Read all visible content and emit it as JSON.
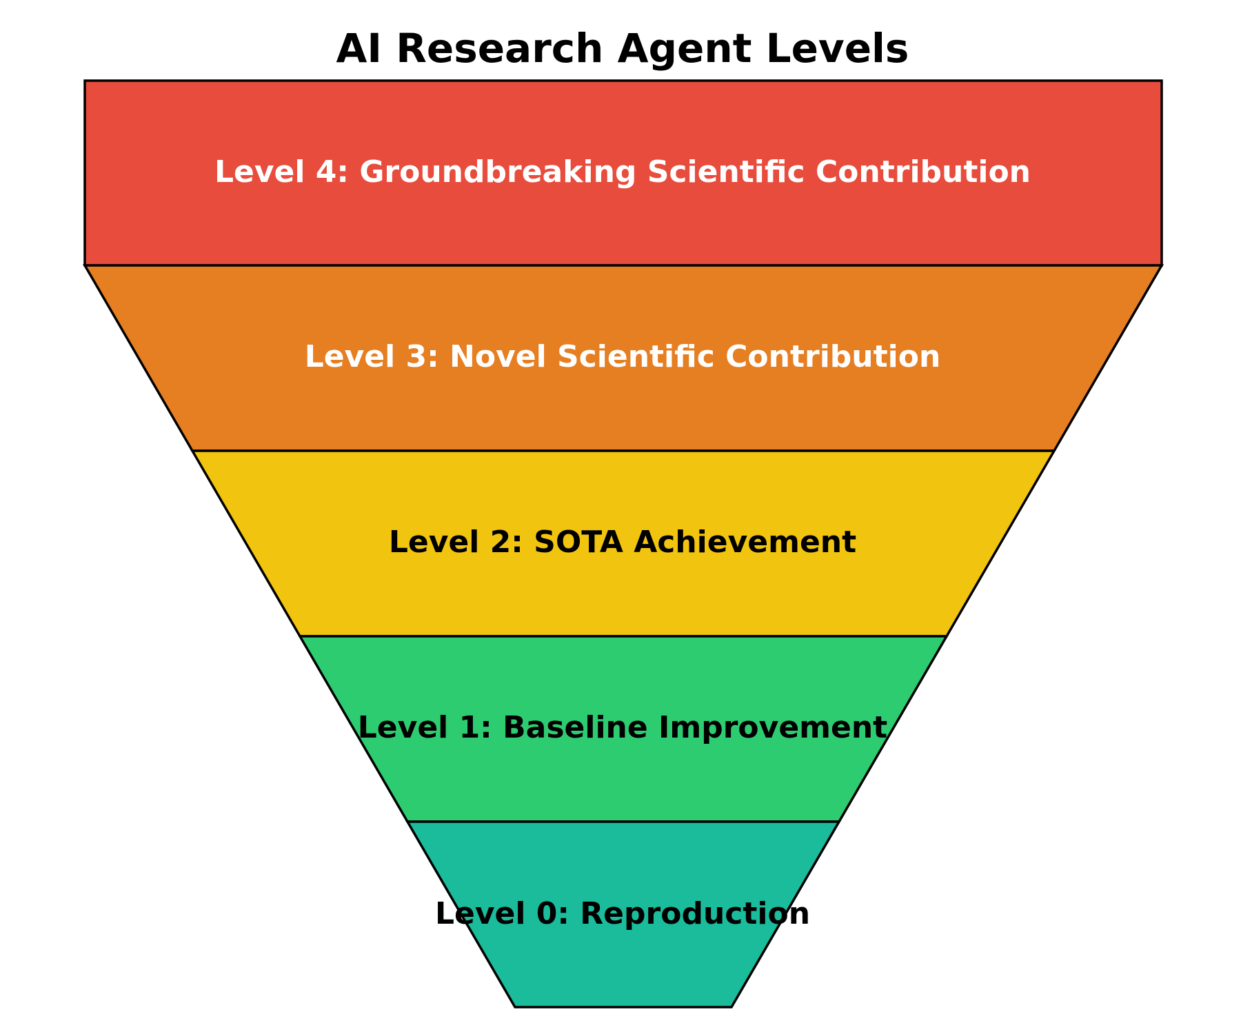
{
  "title": "AI Research Agent Levels",
  "levels": [
    {
      "label": "Level 4: Groundbreaking Scientific Contribution",
      "color": "#e74c3c",
      "text_color": "#ffffff"
    },
    {
      "label": "Level 3: Novel Scientific Contribution",
      "color": "#e67e22",
      "text_color": "#ffffff"
    },
    {
      "label": "Level 2: SOTA Achievement",
      "color": "#f1c40f",
      "text_color": "#000000"
    },
    {
      "label": "Level 1: Baseline Improvement",
      "color": "#2ecc71",
      "text_color": "#000000"
    },
    {
      "label": "Level 0: Reproduction",
      "color": "#1abc9c",
      "text_color": "#000000"
    }
  ]
}
